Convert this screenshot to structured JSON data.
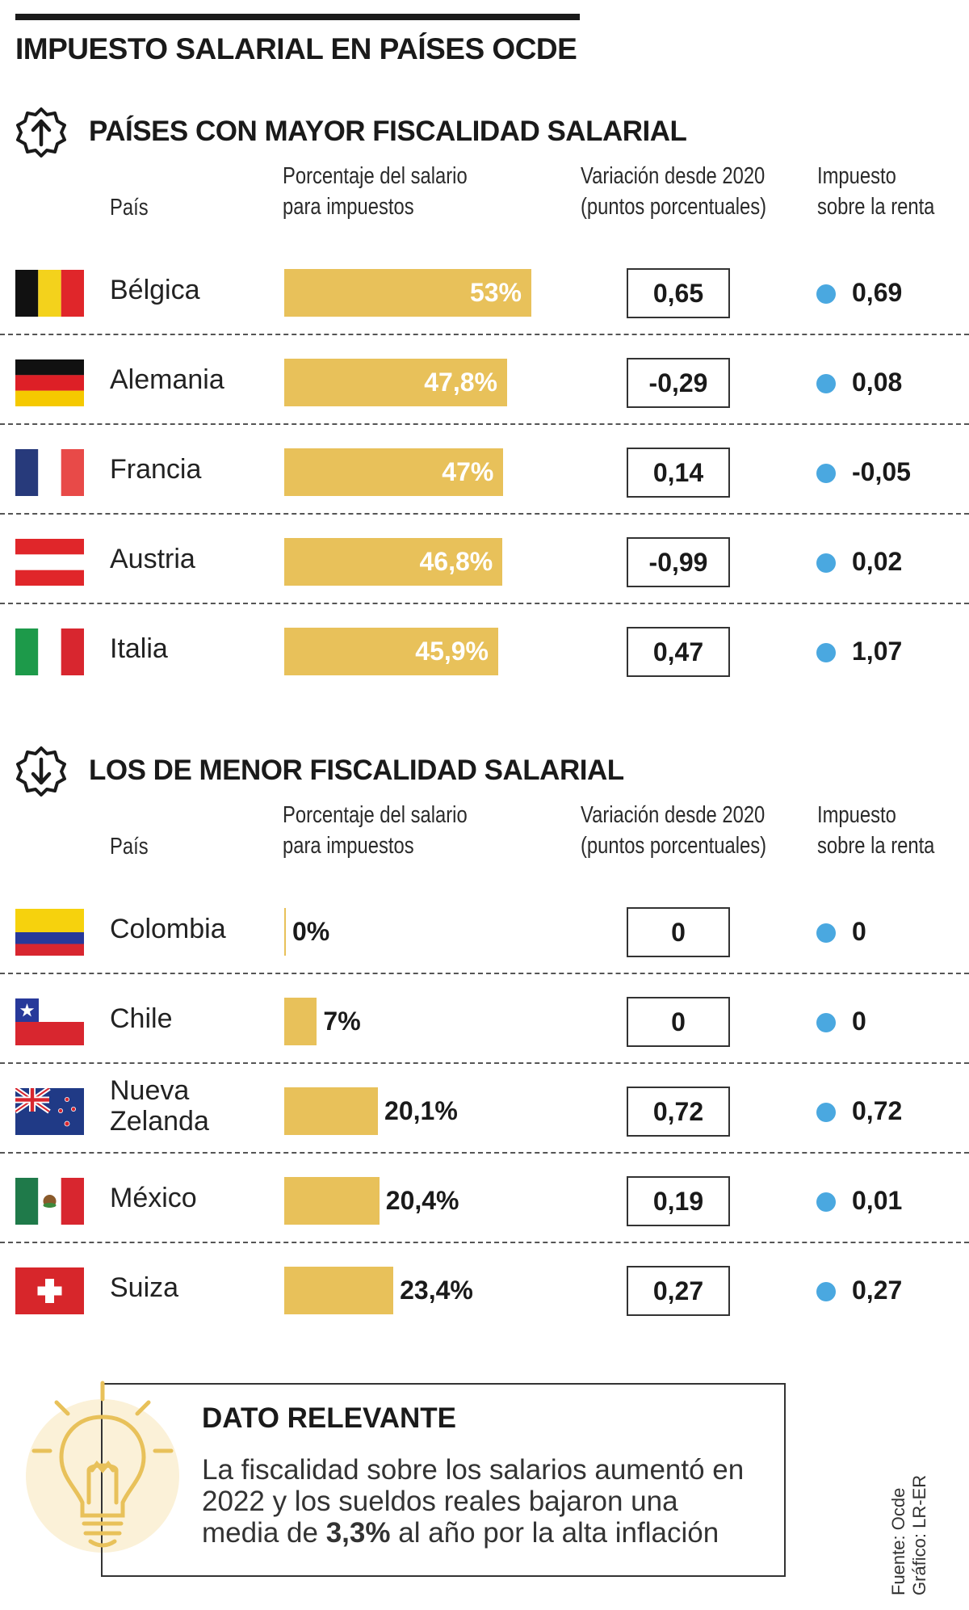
{
  "title": "IMPUESTO SALARIAL EN PAÍSES OCDE",
  "headers": {
    "country": "País",
    "pct_line1": "Porcentaje del salario",
    "pct_line2": "para impuestos",
    "var_line1": "Variación desde 2020",
    "var_line2": "(puntos porcentuales)",
    "tax_line1": "Impuesto",
    "tax_line2": "sobre la renta"
  },
  "colors": {
    "bar": "#e8c15a",
    "dot": "#4aa8e0",
    "bulb_bg": "#fbf1d8",
    "bulb": "#e8c15a"
  },
  "chart_data": [
    {
      "type": "bar",
      "title": "PAÍSES CON MAYOR FISCALIDAD SALARIAL",
      "xlabel": "Porcentaje del salario para impuestos",
      "xlim": [
        0,
        53
      ],
      "categories": [
        "Bélgica",
        "Alemania",
        "Francia",
        "Austria",
        "Italia"
      ],
      "values": [
        53,
        47.8,
        47,
        46.8,
        45.9
      ],
      "value_labels": [
        "53%",
        "47,8%",
        "47%",
        "46,8%",
        "45,9%"
      ],
      "variacion_2020": [
        "0,65",
        "-0,29",
        "0,14",
        "-0,99",
        "0,47"
      ],
      "impuesto_renta": [
        "0,69",
        "0,08",
        "-0,05",
        "0,02",
        "1,07"
      ]
    },
    {
      "type": "bar",
      "title": "LOS DE MENOR FISCALIDAD SALARIAL",
      "xlabel": "Porcentaje del salario para impuestos",
      "xlim": [
        0,
        53
      ],
      "categories": [
        "Colombia",
        "Chile",
        "Nueva Zelanda",
        "México",
        "Suiza"
      ],
      "category_lines": [
        [
          "Colombia"
        ],
        [
          "Chile"
        ],
        [
          "Nueva",
          "Zelanda"
        ],
        [
          "México"
        ],
        [
          "Suiza"
        ]
      ],
      "values": [
        0,
        7,
        20.1,
        20.4,
        23.4
      ],
      "value_labels": [
        "0%",
        "7%",
        "20,1%",
        "20,4%",
        "23,4%"
      ],
      "variacion_2020": [
        "0",
        "0",
        "0,72",
        "0,19",
        "0,27"
      ],
      "impuesto_renta": [
        "0",
        "0",
        "0,72",
        "0,01",
        "0,27"
      ]
    }
  ],
  "flags": [
    [
      "flag-belgium",
      "flag-germany",
      "flag-france",
      "flag-austria",
      "flag-italy"
    ],
    [
      "flag-colombia",
      "flag-chile",
      "flag-new-zealand",
      "flag-mexico",
      "flag-switzerland"
    ]
  ],
  "icons": [
    "arrow-up-badge-icon",
    "arrow-down-badge-icon",
    "lightbulb-icon"
  ],
  "note": {
    "title": "DATO RELEVANTE",
    "text_before": "La fiscalidad sobre los salarios aumentó en 2022 y  los sueldos reales bajaron una media de ",
    "text_bold": "3,3%",
    "text_after": " al año por la alta inflación"
  },
  "source": {
    "line1": "Fuente: Ocde",
    "line2": "Gráfico: LR-ER"
  }
}
